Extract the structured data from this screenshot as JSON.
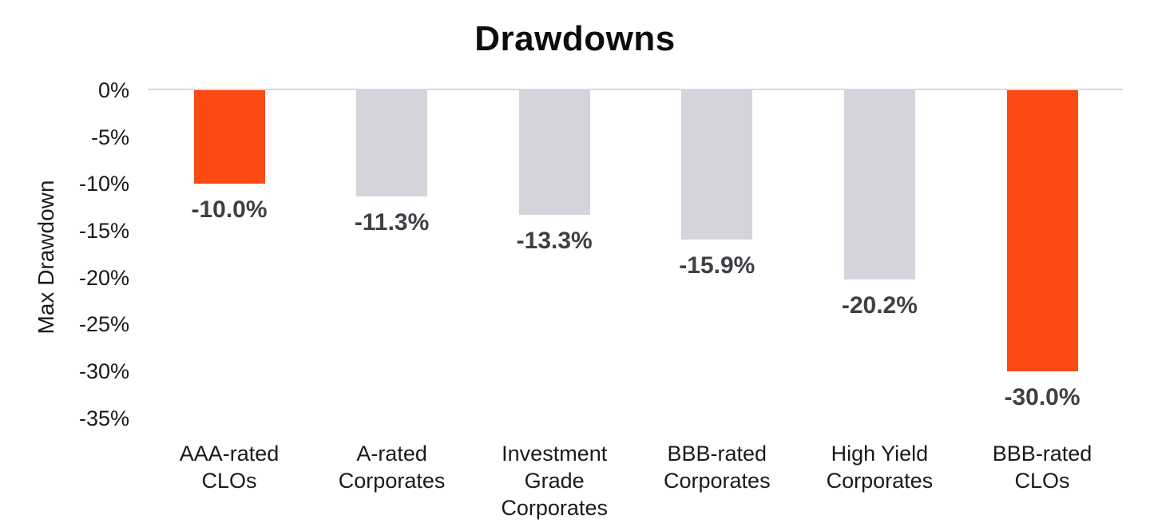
{
  "title": "Drawdowns",
  "y_axis": {
    "label": "Max Drawdown",
    "ticks": [
      "0%",
      "-5%",
      "-10%",
      "-15%",
      "-20%",
      "-25%",
      "-30%",
      "-35%"
    ]
  },
  "colors": {
    "highlight_orange": "#fc4a14",
    "default_gray": "#d5d3dc",
    "gridline": "#d9d9d9",
    "data_label_text": "#3f4045",
    "axis_text": "#1a1a1a",
    "title_text": "#0d0d0d"
  },
  "chart_data": {
    "type": "bar",
    "title": "Drawdowns",
    "xlabel": "",
    "ylabel": "Max Drawdown",
    "ylim": [
      -35,
      0
    ],
    "y_tick_interval": 5,
    "grid": "zero-baseline-only",
    "legend": "none",
    "orientation": "vertical-negative",
    "categories": [
      "AAA-rated CLOs",
      "A-rated Corporates",
      "Investment Grade Corporates",
      "BBB-rated Corporates",
      "High Yield Corporates",
      "BBB-rated CLOs"
    ],
    "values": [
      -10.0,
      -11.3,
      -13.3,
      -15.9,
      -20.2,
      -30.0
    ],
    "data_labels": [
      "-10.0%",
      "-11.3%",
      "-13.3%",
      "-15.9%",
      "-20.2%",
      "-30.0%"
    ],
    "highlighted": [
      true,
      false,
      false,
      false,
      false,
      true
    ],
    "category_lines": [
      [
        "AAA-rated",
        "CLOs"
      ],
      [
        "A-rated",
        "Corporates"
      ],
      [
        "Investment",
        "Grade",
        "Corporates"
      ],
      [
        "BBB-rated",
        "Corporates"
      ],
      [
        "High Yield",
        "Corporates"
      ],
      [
        "BBB-rated",
        "CLOs"
      ]
    ]
  }
}
